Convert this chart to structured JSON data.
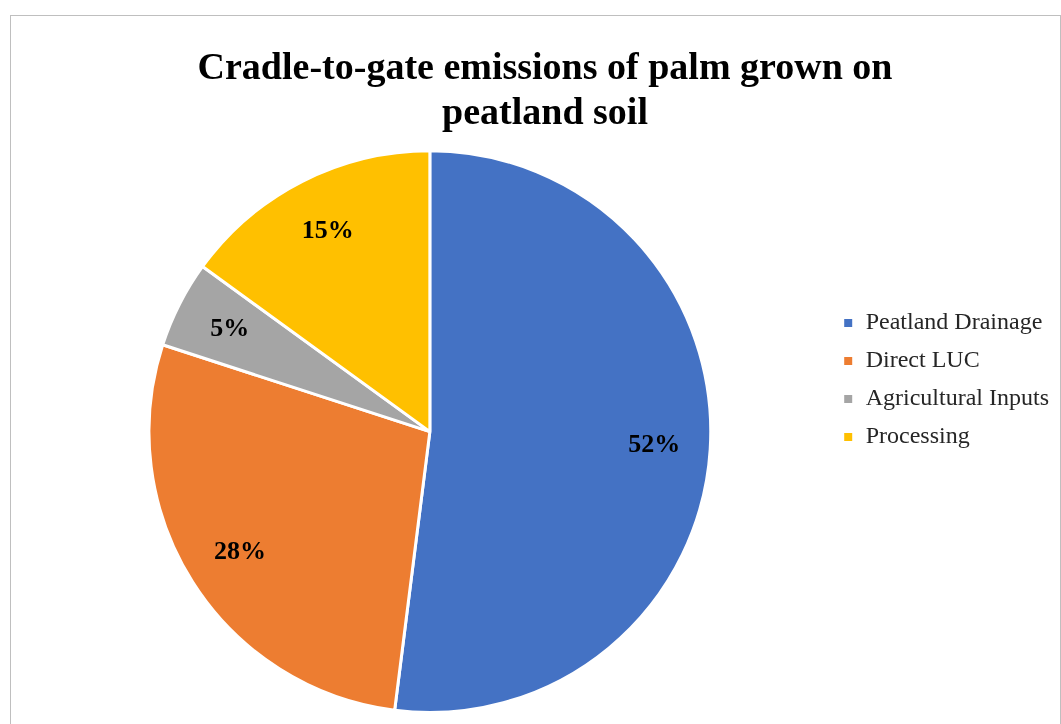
{
  "chart_data": {
    "type": "pie",
    "title": "Cradle-to-gate emissions of palm grown on peatland soil",
    "categories": [
      "Peatland Drainage",
      "Direct LUC",
      "Agricultural Inputs",
      "Processing"
    ],
    "values": [
      52,
      28,
      5,
      15
    ],
    "colors": [
      "#4472c4",
      "#ed7d31",
      "#a5a5a5",
      "#ffc000"
    ],
    "value_labels": [
      "52%",
      "28%",
      "5%",
      "15%"
    ],
    "legend": "right"
  }
}
